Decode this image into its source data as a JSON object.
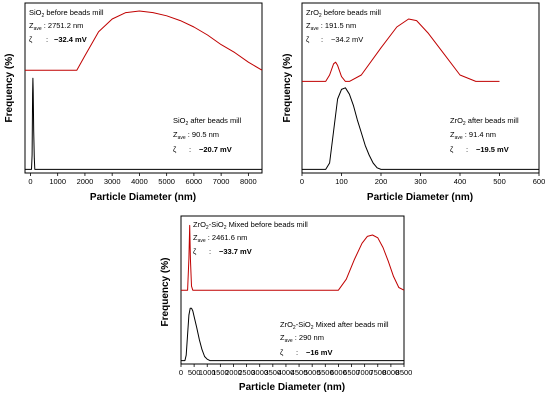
{
  "chart_data": [
    {
      "type": "line",
      "xlabel": "Particle Diameter (nm)",
      "ylabel": "Frequency (%)",
      "xlim": [
        -200,
        8500
      ],
      "x_ticks": [
        0,
        1000,
        2000,
        3000,
        4000,
        5000,
        6000,
        7000,
        8000
      ],
      "annotations": [
        {
          "material": "SiO",
          "sub": "2",
          "suffix": " before beads mill",
          "zlabel": "Z",
          "zsub": "ave",
          "zsep": " : ",
          "zval": "2751.2 nm",
          "zeta_sym": "ζ",
          "zeta_sep": ":",
          "zeta": "−32.4 mV"
        },
        {
          "material": "SiO",
          "sub": "2",
          "suffix": " after beads mill",
          "zlabel": "Z",
          "zsub": "ave",
          "zsep": " : ",
          "zval": "90.5 nm",
          "zeta_sym": "ζ",
          "zeta_sep": ":",
          "zeta": "−20.7 mV"
        }
      ],
      "series": [
        {
          "color": "#c00000",
          "x": [
            -200,
            1700,
            2000,
            2500,
            3000,
            3500,
            4000,
            4500,
            5000,
            5500,
            6000,
            6500,
            7000,
            7500,
            8000,
            8500
          ],
          "y": [
            0.63,
            0.63,
            0.72,
            0.87,
            0.95,
            0.99,
            1.0,
            0.99,
            0.97,
            0.94,
            0.9,
            0.85,
            0.79,
            0.74,
            0.68,
            0.63
          ]
        },
        {
          "color": "#000000",
          "x": [
            -200,
            40,
            60,
            80,
            90,
            100,
            120,
            140,
            160,
            200,
            8500
          ],
          "y": [
            0.01,
            0.01,
            0.1,
            0.48,
            0.58,
            0.5,
            0.25,
            0.08,
            0.01,
            0.01,
            0.01
          ]
        }
      ]
    },
    {
      "type": "line",
      "xlabel": "Particle Diameter (nm)",
      "ylabel": "Frequency (%)",
      "xlim": [
        0,
        600
      ],
      "x_ticks": [
        0,
        100,
        200,
        300,
        400,
        500,
        600
      ],
      "annotations": [
        {
          "material": "ZrO",
          "sub": "2",
          "suffix": " before beads mill",
          "zlabel": "Z",
          "zsub": "ave",
          "zsep": " : ",
          "zval": "191.5 nm",
          "zeta_sym": "ζ",
          "zeta_sep": ":",
          "zeta": "−34.2 mV"
        },
        {
          "material": "ZrO",
          "sub": "2",
          "suffix": " after beads mill",
          "zlabel": "Z",
          "zsub": "ave",
          "zsep": " : ",
          "zval": "91.4 nm",
          "zeta_sym": "ζ",
          "zeta_sep": ":",
          "zeta": "−19.5 mV"
        }
      ],
      "series": [
        {
          "color": "#c00000",
          "x": [
            0,
            60,
            70,
            80,
            85,
            90,
            100,
            110,
            120,
            150,
            200,
            240,
            270,
            290,
            320,
            360,
            400,
            440,
            470,
            500
          ],
          "y": [
            0.56,
            0.56,
            0.6,
            0.67,
            0.68,
            0.66,
            0.59,
            0.56,
            0.56,
            0.6,
            0.77,
            0.9,
            0.95,
            0.94,
            0.86,
            0.73,
            0.6,
            0.56,
            0.56,
            0.56
          ]
        },
        {
          "color": "#000000",
          "x": [
            0,
            60,
            70,
            80,
            90,
            100,
            110,
            120,
            130,
            140,
            150,
            160,
            170,
            180,
            190,
            200,
            600
          ],
          "y": [
            0.01,
            0.01,
            0.05,
            0.25,
            0.45,
            0.51,
            0.52,
            0.48,
            0.41,
            0.32,
            0.24,
            0.16,
            0.1,
            0.05,
            0.02,
            0.01,
            0.01
          ]
        }
      ]
    },
    {
      "type": "line",
      "xlabel": "Particle Diameter (nm)",
      "ylabel": "Frequency (%)",
      "xlim": [
        0,
        8500
      ],
      "x_ticks": [
        0,
        500,
        1000,
        1500,
        2000,
        2500,
        3000,
        3500,
        4000,
        4500,
        5000,
        5500,
        6000,
        6500,
        7000,
        7500,
        8000,
        8500
      ],
      "annotations": [
        {
          "material": "ZrO",
          "sub": "2",
          "mid": "-SiO",
          "sub2": "2",
          "suffix": " Mixed before beads mill",
          "zlabel": "Z",
          "zsub": "ave",
          "zsep": " : ",
          "zval": "2461.6 nm",
          "zeta_sym": "ζ",
          "zeta_sep": ":",
          "zeta": "−33.7 mV"
        },
        {
          "material": "ZrO",
          "sub": "2",
          "mid": "-SiO",
          "sub2": "2",
          "suffix": " Mixed after beads mill",
          "zlabel": "Z",
          "zsub": "ave",
          "zsep": " : ",
          "zval": "290 nm",
          "zeta_sym": "ζ",
          "zeta_sep": ":",
          "zeta": "−16 mV"
        }
      ],
      "series": [
        {
          "color": "#c00000",
          "x": [
            0,
            250,
            300,
            330,
            360,
            400,
            450,
            6000,
            6300,
            6600,
            6900,
            7100,
            7300,
            7500,
            7700,
            7900,
            8100,
            8300,
            8500
          ],
          "y": [
            0.52,
            0.52,
            0.75,
            0.99,
            0.75,
            0.55,
            0.52,
            0.52,
            0.6,
            0.74,
            0.86,
            0.91,
            0.92,
            0.9,
            0.83,
            0.73,
            0.62,
            0.54,
            0.52
          ]
        },
        {
          "color": "#000000",
          "x": [
            0,
            150,
            200,
            250,
            300,
            350,
            400,
            450,
            500,
            600,
            700,
            800,
            900,
            1000,
            1100,
            1200,
            8500
          ],
          "y": [
            0.01,
            0.01,
            0.05,
            0.2,
            0.34,
            0.39,
            0.39,
            0.37,
            0.33,
            0.25,
            0.16,
            0.09,
            0.04,
            0.02,
            0.01,
            0.01,
            0.01
          ]
        }
      ]
    }
  ]
}
